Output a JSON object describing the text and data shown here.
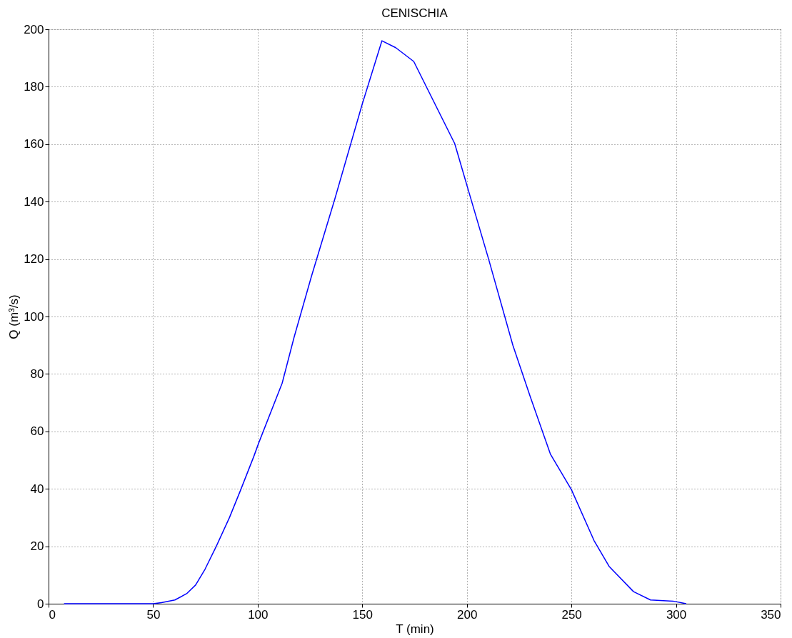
{
  "chart_data": {
    "type": "line",
    "title": "CENISCHIA",
    "xlabel": "T (min)",
    "ylabel": "Q (m³/s)",
    "x": [
      7.4,
      50,
      54,
      60.4,
      66,
      70.3,
      74.8,
      80.2,
      86.5,
      91.9,
      98.2,
      100.5,
      111.7,
      117.4,
      125.7,
      136.9,
      150,
      159.4,
      166,
      174.6,
      194.2,
      200.5,
      210.4,
      222,
      230.2,
      240,
      250,
      260.8,
      268,
      279.7,
      287.8,
      298.6,
      304.9
    ],
    "series": [
      {
        "color": "#0000ff",
        "values": [
          0,
          0,
          0.4,
          1.3,
          3.5,
          6.5,
          12,
          20,
          30,
          39.7,
          51.4,
          56,
          76.8,
          92.8,
          114,
          141,
          174,
          196,
          193.6,
          188.8,
          160.2,
          144.5,
          120,
          90,
          72.3,
          52,
          39.7,
          22,
          13,
          4.2,
          1.3,
          0.9,
          0
        ]
      }
    ],
    "xlim": [
      0,
      350
    ],
    "xticks": [
      0,
      50,
      100,
      150,
      200,
      250,
      300,
      350
    ],
    "ylim": [
      0,
      200
    ],
    "yticks": [
      0,
      20,
      40,
      60,
      80,
      100,
      120,
      140,
      160,
      180,
      200
    ],
    "grid": true,
    "line_style": "solid",
    "marker": "none"
  }
}
